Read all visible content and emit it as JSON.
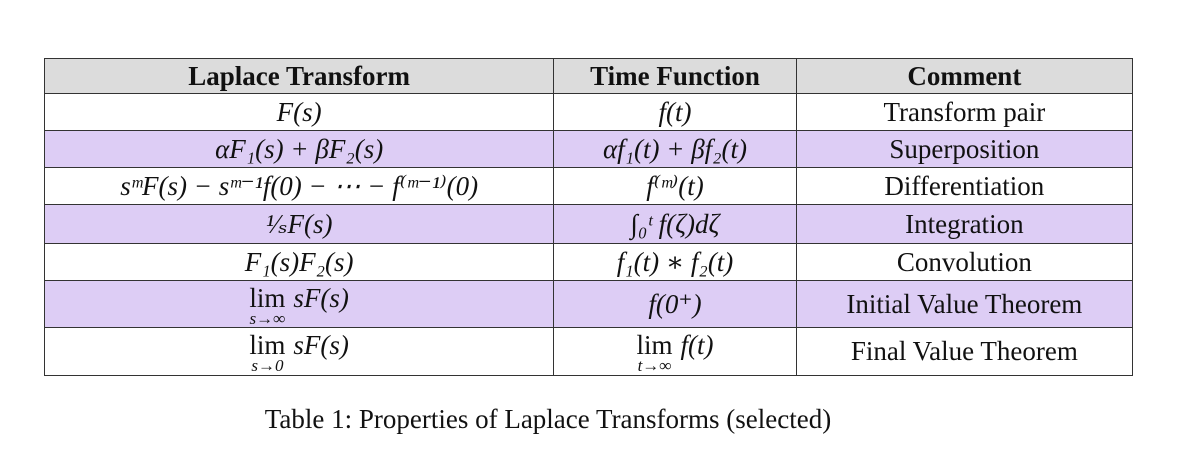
{
  "table": {
    "header": [
      "Laplace Transform",
      "Time Function",
      "Comment"
    ],
    "rows": [
      [
        "F(s)",
        "f(t)",
        "Transform pair"
      ],
      [
        "αF₁(s) + βF₂(s)",
        "αf₁(t) + βf₂(t)",
        "Superposition"
      ],
      [
        "sᵐF(s) − sᵐ⁻¹f(0) − ⋯ − f⁽ᵐ⁻¹⁾(0)",
        "f⁽ᵐ⁾(t)",
        "Differentiation"
      ],
      [
        "¹⁄ₛF(s)",
        "∫₀ᵗ f(ζ)dζ",
        "Integration"
      ],
      [
        "F₁(s)F₂(s)",
        "f₁(t) ∗ f₂(t)",
        "Convolution"
      ],
      [
        {
          "lim": "lim",
          "under": "s→∞",
          "expr": "sF(s)"
        },
        "f(0⁺)",
        "Initial Value Theorem"
      ],
      [
        {
          "lim": "lim",
          "under": "s→0",
          "expr": "sF(s)"
        },
        {
          "lim": "lim",
          "under": "t→∞",
          "expr": "f(t)"
        },
        "Final Value Theorem"
      ]
    ]
  },
  "caption": "Table 1: Properties of Laplace Transforms (selected)"
}
